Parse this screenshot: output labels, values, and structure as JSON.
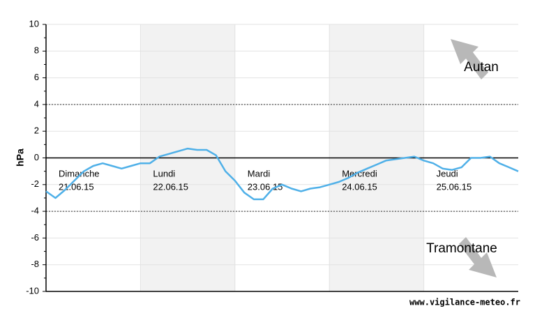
{
  "chart_data": {
    "type": "line",
    "y_label": "hPa",
    "ylim": [
      -10,
      10
    ],
    "yticks": [
      -10,
      -8,
      -6,
      -4,
      -2,
      0,
      2,
      4,
      6,
      8,
      10
    ],
    "grid": true,
    "dashed_lines": [
      4,
      -4
    ],
    "days": [
      {
        "name": "Dimanche",
        "date": "21.06.15",
        "shaded": false
      },
      {
        "name": "Lundi",
        "date": "22.06.15",
        "shaded": true
      },
      {
        "name": "Mardi",
        "date": "23.06.15",
        "shaded": false
      },
      {
        "name": "Mercredi",
        "date": "24.06.15",
        "shaded": true
      },
      {
        "name": "Jeudi",
        "date": "25.06.15",
        "shaded": false
      }
    ],
    "series": [
      {
        "color": "#4fb0e8",
        "values": [
          -2.5,
          -3.0,
          -2.4,
          -1.7,
          -1.0,
          -0.6,
          -0.4,
          -0.6,
          -0.8,
          -0.6,
          -0.4,
          -0.4,
          0.1,
          0.3,
          0.5,
          0.7,
          0.6,
          0.6,
          0.2,
          -1.0,
          -1.7,
          -2.6,
          -3.1,
          -3.1,
          -2.3,
          -2.0,
          -2.3,
          -2.5,
          -2.3,
          -2.2,
          -2.0,
          -1.8,
          -1.5,
          -1.1,
          -0.8,
          -0.5,
          -0.2,
          -0.1,
          0.0,
          0.1,
          -0.2,
          -0.4,
          -0.8,
          -0.9,
          -0.7,
          0.0,
          0.0,
          0.1,
          -0.4,
          -0.7,
          -1.0
        ]
      }
    ],
    "annotations": {
      "top": "Autan",
      "bottom": "Tramontane",
      "source": "www.vigilance-meteo.fr"
    }
  }
}
